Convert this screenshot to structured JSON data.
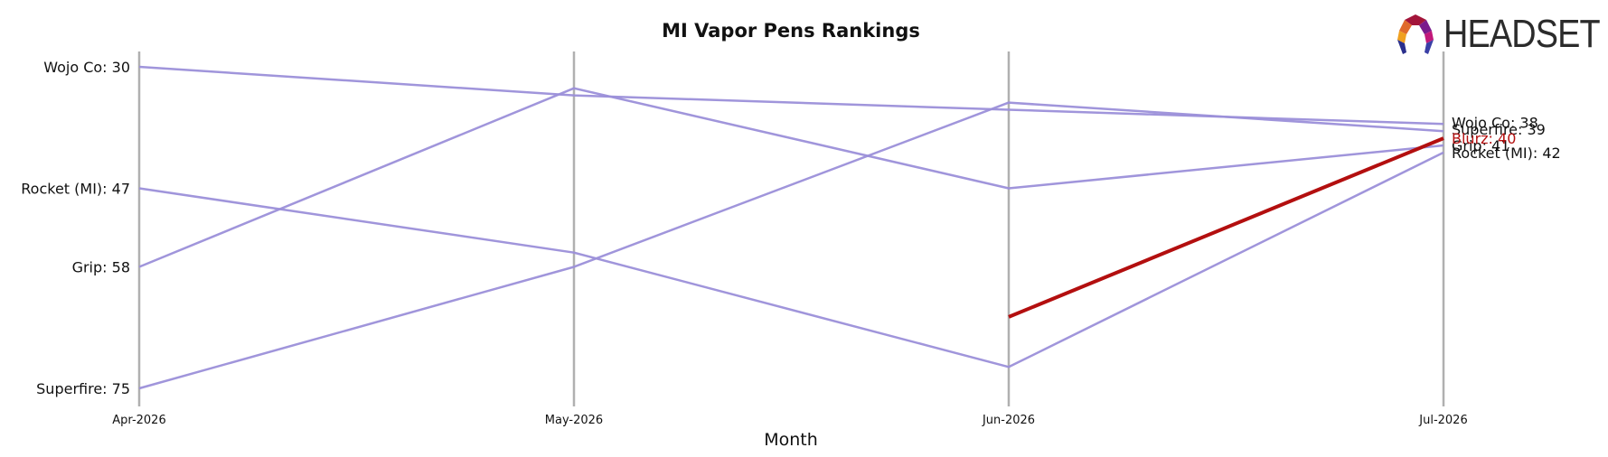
{
  "chart_data": {
    "type": "line",
    "title": "MI Vapor Pens Rankings",
    "xlabel": "Month",
    "ylabel": "",
    "y_inverted": true,
    "ylim": [
      29,
      80
    ],
    "categories": [
      "Apr-2026",
      "May-2026",
      "Jun-2026",
      "Jul-2026"
    ],
    "series": [
      {
        "name": "Wojo Co",
        "values": [
          30,
          34,
          36,
          38
        ],
        "color": "#9b8fd9",
        "left_label": "Wojo Co: 30",
        "right_label": "Wojo Co: 38"
      },
      {
        "name": "Rocket (MI)",
        "values": [
          47,
          56,
          72,
          42
        ],
        "color": "#9b8fd9",
        "left_label": "Rocket (MI): 47",
        "right_label": "Rocket (MI): 42"
      },
      {
        "name": "Grip",
        "values": [
          58,
          33,
          47,
          41
        ],
        "color": "#9b8fd9",
        "left_label": "Grip: 58",
        "right_label": "Grip: 41"
      },
      {
        "name": "Superfire",
        "values": [
          75,
          58,
          35,
          39
        ],
        "color": "#9b8fd9",
        "left_label": "Superfire: 75",
        "right_label": "Superfire: 39"
      },
      {
        "name": "Blurz",
        "values": [
          null,
          null,
          65,
          40
        ],
        "color": "#b30f0f",
        "highlight": true,
        "left_label": "",
        "right_label": "Blurz: 40"
      }
    ],
    "grid": false,
    "legend": "none"
  },
  "brand": {
    "logo_text": "HEADSET"
  },
  "colors": {
    "series": "#9b8fd9",
    "highlight": "#b30f0f",
    "axis_line": "#b0b0b0"
  }
}
